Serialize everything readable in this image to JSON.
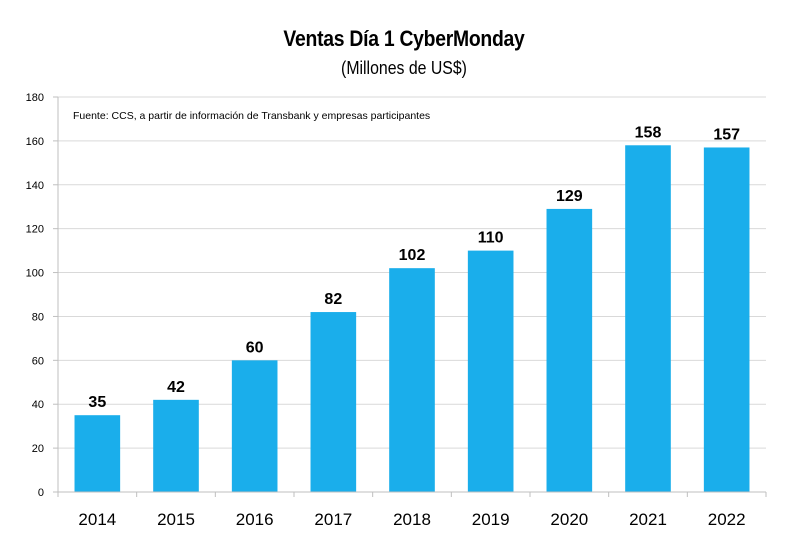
{
  "chart_data": {
    "type": "bar",
    "title": "Ventas Día 1 CyberMonday",
    "subtitle": "(Millones de US$)",
    "note": "Fuente: CCS, a partir de información de Transbank y empresas participantes",
    "categories": [
      "2014",
      "2015",
      "2016",
      "2017",
      "2018",
      "2019",
      "2020",
      "2021",
      "2022"
    ],
    "values": [
      35,
      42,
      60,
      82,
      102,
      110,
      129,
      158,
      157
    ],
    "data_labels": [
      "35",
      "42",
      "60",
      "82",
      "102",
      "110",
      "129",
      "158",
      "157"
    ],
    "y_ticks": [
      "0",
      "20",
      "40",
      "60",
      "80",
      "100",
      "120",
      "140",
      "160",
      "180"
    ],
    "ylim": [
      0,
      180
    ],
    "grid": true,
    "legend": "none",
    "colors": {
      "bar": "#1AAEEB",
      "grid": "#D9D9D9",
      "axis": "#BFBFBF"
    }
  }
}
